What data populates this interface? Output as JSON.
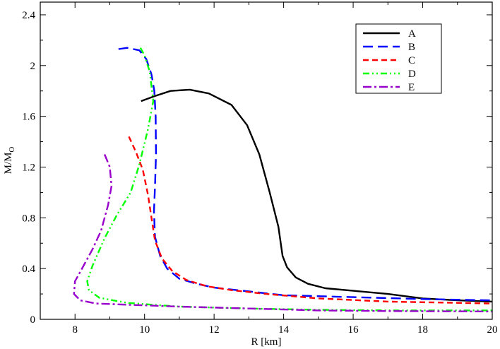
{
  "chart_data": {
    "type": "line",
    "xlabel": "R [km]",
    "ylabel": {
      "main": "M/M",
      "subscript": "O"
    },
    "xlim": [
      7,
      20
    ],
    "ylim": [
      0,
      2.5
    ],
    "xticks": [
      8,
      10,
      12,
      14,
      16,
      18,
      20
    ],
    "yticks": [
      0,
      0.4,
      0.8,
      1.2,
      1.6,
      2,
      2.4
    ],
    "xtick_labels": [
      "8",
      "10",
      "12",
      "14",
      "16",
      "18",
      "20"
    ],
    "ytick_labels": [
      "0",
      "0.4",
      "0.8",
      "1.2",
      "1.6",
      "2",
      "2.4"
    ],
    "grid": false,
    "legend_position": "top-right",
    "series": [
      {
        "name": "A",
        "color": "#000000",
        "dash": "solid",
        "points": [
          [
            9.9,
            1.72
          ],
          [
            10.3,
            1.76
          ],
          [
            10.75,
            1.8
          ],
          [
            11.3,
            1.81
          ],
          [
            11.85,
            1.78
          ],
          [
            12.5,
            1.69
          ],
          [
            12.95,
            1.53
          ],
          [
            13.3,
            1.3
          ],
          [
            13.6,
            1.0
          ],
          [
            13.85,
            0.73
          ],
          [
            13.97,
            0.5
          ],
          [
            14.1,
            0.41
          ],
          [
            14.35,
            0.33
          ],
          [
            14.7,
            0.28
          ],
          [
            15.2,
            0.245
          ],
          [
            16.0,
            0.225
          ],
          [
            17.0,
            0.2
          ],
          [
            18.0,
            0.165
          ],
          [
            19.0,
            0.15
          ],
          [
            20.0,
            0.14
          ]
        ]
      },
      {
        "name": "B",
        "color": "#0000ff",
        "dash": "long-dash",
        "points": [
          [
            9.25,
            2.13
          ],
          [
            9.5,
            2.14
          ],
          [
            9.85,
            2.12
          ],
          [
            10.05,
            2.05
          ],
          [
            10.2,
            1.93
          ],
          [
            10.28,
            1.8
          ],
          [
            10.32,
            1.6
          ],
          [
            10.33,
            1.3
          ],
          [
            10.3,
            1.05
          ],
          [
            10.27,
            0.85
          ],
          [
            10.3,
            0.65
          ],
          [
            10.45,
            0.5
          ],
          [
            10.65,
            0.4
          ],
          [
            11.0,
            0.32
          ],
          [
            11.5,
            0.28
          ],
          [
            12.0,
            0.25
          ],
          [
            13.0,
            0.22
          ],
          [
            14.0,
            0.19
          ],
          [
            16.0,
            0.175
          ],
          [
            18.0,
            0.16
          ],
          [
            20.0,
            0.15
          ]
        ]
      },
      {
        "name": "C",
        "color": "#ff0000",
        "dash": "dash",
        "points": [
          [
            9.55,
            1.44
          ],
          [
            9.75,
            1.32
          ],
          [
            9.95,
            1.18
          ],
          [
            10.1,
            0.98
          ],
          [
            10.2,
            0.8
          ],
          [
            10.3,
            0.62
          ],
          [
            10.5,
            0.48
          ],
          [
            10.8,
            0.38
          ],
          [
            11.2,
            0.31
          ],
          [
            11.8,
            0.26
          ],
          [
            12.5,
            0.23
          ],
          [
            13.5,
            0.2
          ],
          [
            15.0,
            0.165
          ],
          [
            17.0,
            0.14
          ],
          [
            20.0,
            0.125
          ]
        ]
      },
      {
        "name": "D",
        "color": "#00ff00",
        "dash": "dash-dot-dot",
        "points": [
          [
            9.88,
            2.14
          ],
          [
            10.0,
            2.08
          ],
          [
            10.15,
            1.95
          ],
          [
            10.25,
            1.72
          ],
          [
            10.1,
            1.5
          ],
          [
            9.85,
            1.22
          ],
          [
            9.6,
            1.0
          ],
          [
            9.2,
            0.82
          ],
          [
            8.85,
            0.64
          ],
          [
            8.5,
            0.42
          ],
          [
            8.35,
            0.3
          ],
          [
            8.4,
            0.23
          ],
          [
            8.7,
            0.17
          ],
          [
            9.5,
            0.13
          ],
          [
            11.0,
            0.1
          ],
          [
            13.0,
            0.085
          ],
          [
            15.0,
            0.075
          ],
          [
            17.0,
            0.07
          ],
          [
            20.0,
            0.07
          ]
        ]
      },
      {
        "name": "E",
        "color": "#9900cc",
        "dash": "dash-dot",
        "points": [
          [
            8.85,
            1.3
          ],
          [
            9.0,
            1.2
          ],
          [
            9.05,
            1.05
          ],
          [
            8.95,
            0.9
          ],
          [
            8.75,
            0.7
          ],
          [
            8.5,
            0.55
          ],
          [
            8.2,
            0.4
          ],
          [
            8.0,
            0.3
          ],
          [
            7.97,
            0.2
          ],
          [
            8.15,
            0.15
          ],
          [
            8.6,
            0.125
          ],
          [
            9.5,
            0.115
          ],
          [
            11.0,
            0.1
          ],
          [
            13.0,
            0.085
          ],
          [
            15.0,
            0.07
          ],
          [
            17.0,
            0.065
          ],
          [
            20.0,
            0.062
          ]
        ]
      }
    ]
  }
}
